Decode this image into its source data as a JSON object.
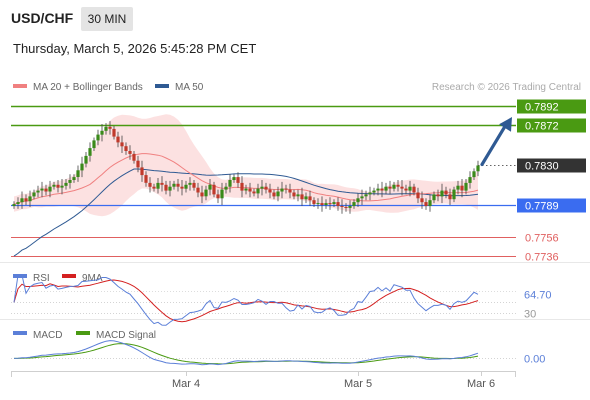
{
  "header": {
    "symbol": "USD/CHF",
    "timeframe": "30 MIN",
    "datetime": "Thursday, March 5, 2026 5:45:28 PM CET",
    "copyright": "Research © 2026 Trading Central"
  },
  "colors": {
    "bollinger_band": "#fbdcdc",
    "ma20": "#f08080",
    "ma50": "#2f5a93",
    "resistance": "#4a9a12",
    "pivot": "#3a6cf0",
    "support": "#e06060",
    "current_price": "#333333",
    "candle_up": "#3a8a1a",
    "candle_down": "#c0392b",
    "forecast_arrow": "#2f5a93",
    "rsi": "#5b7fd8",
    "rsi_ma": "#d42020",
    "macd": "#5b7fd8",
    "macd_signal": "#4a9a12"
  },
  "chart_data": [
    {
      "type": "candlestick",
      "legend": [
        {
          "name": "MA 20 + Bollinger Bands",
          "color": "#f08080"
        },
        {
          "name": "MA 50",
          "color": "#2f5a93"
        }
      ],
      "legend_position": "top-left",
      "y_range": [
        0.7732,
        0.79
      ],
      "x_ticks": [
        "Mar 4",
        "Mar 5",
        "Mar 6"
      ],
      "levels": [
        {
          "kind": "resistance",
          "value": 0.7892,
          "label": "0.7892"
        },
        {
          "kind": "resistance",
          "value": 0.7872,
          "label": "0.7872"
        },
        {
          "kind": "current",
          "value": 0.783,
          "label": "0.7830"
        },
        {
          "kind": "pivot",
          "value": 0.7789,
          "label": "0.7789"
        },
        {
          "kind": "support",
          "value": 0.7756,
          "label": "0.7756"
        },
        {
          "kind": "support",
          "value": 0.7736,
          "label": "0.7736"
        }
      ],
      "forecast": {
        "from": 0.783,
        "to": 0.7872
      },
      "close_series": [
        0.779,
        0.7792,
        0.7796,
        0.7793,
        0.7798,
        0.7802,
        0.7804,
        0.7806,
        0.7803,
        0.7808,
        0.781,
        0.7807,
        0.7809,
        0.7812,
        0.7815,
        0.7818,
        0.7825,
        0.7832,
        0.784,
        0.7848,
        0.7856,
        0.7862,
        0.7866,
        0.787,
        0.7868,
        0.786,
        0.7854,
        0.785,
        0.7845,
        0.7842,
        0.7835,
        0.7828,
        0.782,
        0.7812,
        0.7808,
        0.7806,
        0.7812,
        0.781,
        0.7804,
        0.7808,
        0.7811,
        0.7808,
        0.7806,
        0.781,
        0.7812,
        0.7807,
        0.7802,
        0.7798,
        0.7805,
        0.781,
        0.78,
        0.7796,
        0.7805,
        0.7808,
        0.7815,
        0.7818,
        0.7812,
        0.7804,
        0.7806,
        0.7803,
        0.7801,
        0.7806,
        0.7808,
        0.7805,
        0.7802,
        0.7798,
        0.7803,
        0.7806,
        0.7805,
        0.7802,
        0.7798,
        0.78,
        0.7795,
        0.7798,
        0.7794,
        0.779,
        0.7791,
        0.7789,
        0.7791,
        0.779,
        0.7792,
        0.7788,
        0.7787,
        0.7786,
        0.7788,
        0.7792,
        0.7796,
        0.7798,
        0.78,
        0.7802,
        0.7804,
        0.7806,
        0.7804,
        0.7808,
        0.7806,
        0.781,
        0.7808,
        0.7806,
        0.7804,
        0.7808,
        0.7802,
        0.7796,
        0.7792,
        0.7788,
        0.7794,
        0.78,
        0.7798,
        0.7804,
        0.78,
        0.7795,
        0.7805,
        0.7809,
        0.7804,
        0.7812,
        0.7818,
        0.7824,
        0.783
      ]
    },
    {
      "type": "line",
      "legend": [
        {
          "name": "RSI",
          "color": "#5b7fd8"
        },
        {
          "name": "9MA",
          "color": "#d42020"
        }
      ],
      "y_range": [
        25,
        80
      ],
      "tick_labels": [
        "64.70",
        "30"
      ],
      "current_value": 64.7
    },
    {
      "type": "line",
      "legend": [
        {
          "name": "MACD",
          "color": "#5b7fd8"
        },
        {
          "name": "MACD Signal",
          "color": "#4a9a12"
        }
      ],
      "y_range": [
        -0.001,
        0.0016
      ],
      "tick_labels": [
        "0.00"
      ],
      "current_value": 0.0
    }
  ]
}
